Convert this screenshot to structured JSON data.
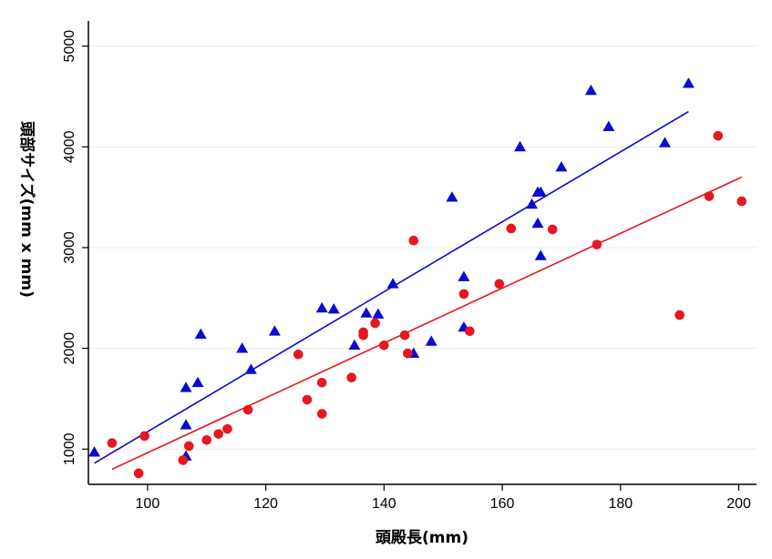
{
  "chart_data": {
    "type": "scatter",
    "title": "",
    "xlabel": "頭殿長(mm)",
    "ylabel": "頭部サイズ(mm x mm)",
    "xlim": [
      90,
      203
    ],
    "ylim": [
      650,
      5250
    ],
    "x_ticks": [
      100,
      120,
      140,
      160,
      180,
      200
    ],
    "y_ticks": [
      1000,
      2000,
      3000,
      4000,
      5000
    ],
    "grid": "horizontal",
    "legend": "none",
    "series": [
      {
        "marker": "triangle",
        "color": "#0a0ad0",
        "points": [
          [
            91,
            970
          ],
          [
            106.5,
            930
          ],
          [
            106.5,
            1240
          ],
          [
            106.5,
            1610
          ],
          [
            108.5,
            1660
          ],
          [
            109,
            2140
          ],
          [
            116,
            2000
          ],
          [
            117.5,
            1790
          ],
          [
            121.5,
            2170
          ],
          [
            129.5,
            2400
          ],
          [
            131.5,
            2390
          ],
          [
            135,
            2030
          ],
          [
            137,
            2350
          ],
          [
            139,
            2340
          ],
          [
            141.5,
            2640
          ],
          [
            145,
            1950
          ],
          [
            148,
            2070
          ],
          [
            151.5,
            3500
          ],
          [
            153.5,
            2710
          ],
          [
            153.5,
            2210
          ],
          [
            163,
            4000
          ],
          [
            165,
            3430
          ],
          [
            166,
            3550
          ],
          [
            166.5,
            3550
          ],
          [
            166,
            3240
          ],
          [
            166.5,
            2920
          ],
          [
            170,
            3800
          ],
          [
            175,
            4560
          ],
          [
            178,
            4200
          ],
          [
            187.5,
            4040
          ],
          [
            191.5,
            4630
          ]
        ],
        "trend": [
          [
            91,
            860
          ],
          [
            191.5,
            4350
          ]
        ]
      },
      {
        "marker": "circle",
        "color": "#e8161e",
        "points": [
          [
            94,
            1060
          ],
          [
            98.5,
            760
          ],
          [
            99.5,
            1130
          ],
          [
            106,
            890
          ],
          [
            107,
            1030
          ],
          [
            110,
            1090
          ],
          [
            112,
            1150
          ],
          [
            113.5,
            1200
          ],
          [
            117,
            1390
          ],
          [
            125.5,
            1940
          ],
          [
            127,
            1490
          ],
          [
            129.5,
            1660
          ],
          [
            129.5,
            1350
          ],
          [
            134.5,
            1710
          ],
          [
            136.5,
            2130
          ],
          [
            136.5,
            2160
          ],
          [
            138.5,
            2250
          ],
          [
            140,
            2030
          ],
          [
            143.5,
            2130
          ],
          [
            144,
            1950
          ],
          [
            145,
            3070
          ],
          [
            153.5,
            2540
          ],
          [
            154.5,
            2170
          ],
          [
            159.5,
            2640
          ],
          [
            161.5,
            3190
          ],
          [
            168.5,
            3180
          ],
          [
            176,
            3030
          ],
          [
            190,
            2330
          ],
          [
            195,
            3510
          ],
          [
            196.5,
            4110
          ],
          [
            200.5,
            3460
          ]
        ],
        "trend": [
          [
            94,
            800
          ],
          [
            200.5,
            3700
          ]
        ]
      }
    ]
  }
}
